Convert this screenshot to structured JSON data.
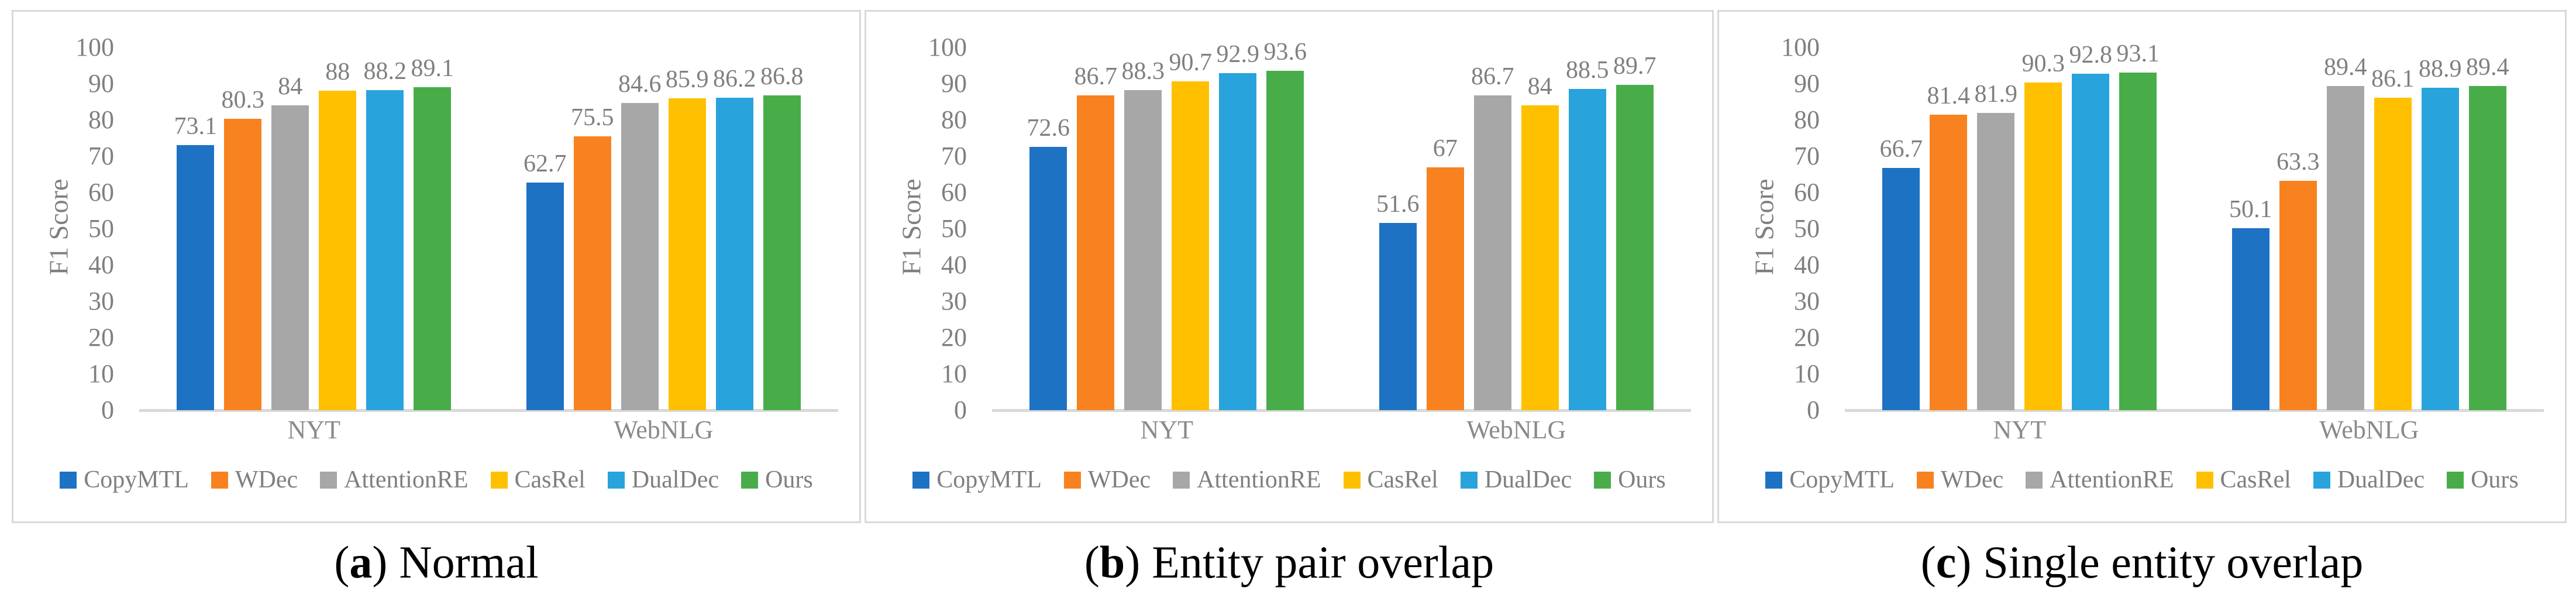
{
  "figure": {
    "ylabel": "F1 Score",
    "yticks": [
      0,
      10,
      20,
      30,
      40,
      50,
      60,
      70,
      80,
      90,
      100
    ],
    "categories": [
      "NYT",
      "WebNLG"
    ],
    "legend": [
      {
        "label": "CopyMTL",
        "color": "#1D72C4"
      },
      {
        "label": "WDec",
        "color": "#F8821F"
      },
      {
        "label": "AttentionRE",
        "color": "#A7A7A7"
      },
      {
        "label": "CasRel",
        "color": "#FFC000"
      },
      {
        "label": "DualDec",
        "color": "#29A3DC"
      },
      {
        "label": "Ours",
        "color": "#48AD49"
      }
    ],
    "text_color": "#7F7F7F",
    "axis_line_color": "#D9D9D9",
    "panel_border_color": "#D9D9D9"
  },
  "chart_data": [
    {
      "type": "bar",
      "panel": "a",
      "caption": {
        "letter": "a",
        "title": "Normal"
      },
      "ylabel": "F1 Score",
      "ylim": [
        0,
        100
      ],
      "grid": false,
      "legend_position": "bottom",
      "categories": [
        "NYT",
        "WebNLG"
      ],
      "series": [
        {
          "name": "CopyMTL",
          "values": [
            73.1,
            62.7
          ]
        },
        {
          "name": "WDec",
          "values": [
            80.3,
            75.5
          ]
        },
        {
          "name": "AttentionRE",
          "values": [
            84,
            84.6
          ]
        },
        {
          "name": "CasRel",
          "values": [
            88,
            85.9
          ]
        },
        {
          "name": "DualDec",
          "values": [
            88.2,
            86.2
          ]
        },
        {
          "name": "Ours",
          "values": [
            89.1,
            86.8
          ]
        }
      ]
    },
    {
      "type": "bar",
      "panel": "b",
      "caption": {
        "letter": "b",
        "title": "Entity pair overlap"
      },
      "ylabel": "F1 Score",
      "ylim": [
        0,
        100
      ],
      "grid": false,
      "legend_position": "bottom",
      "categories": [
        "NYT",
        "WebNLG"
      ],
      "series": [
        {
          "name": "CopyMTL",
          "values": [
            72.6,
            51.6
          ]
        },
        {
          "name": "WDec",
          "values": [
            86.7,
            67
          ]
        },
        {
          "name": "AttentionRE",
          "values": [
            88.3,
            86.7
          ]
        },
        {
          "name": "CasRel",
          "values": [
            90.7,
            84
          ]
        },
        {
          "name": "DualDec",
          "values": [
            92.9,
            88.5
          ]
        },
        {
          "name": "Ours",
          "values": [
            93.6,
            89.7
          ]
        }
      ]
    },
    {
      "type": "bar",
      "panel": "c",
      "caption": {
        "letter": "c",
        "title": "Single entity overlap"
      },
      "ylabel": "F1 Score",
      "ylim": [
        0,
        100
      ],
      "grid": false,
      "legend_position": "bottom",
      "categories": [
        "NYT",
        "WebNLG"
      ],
      "series": [
        {
          "name": "CopyMTL",
          "values": [
            66.7,
            50.1
          ]
        },
        {
          "name": "WDec",
          "values": [
            81.4,
            63.3
          ]
        },
        {
          "name": "AttentionRE",
          "values": [
            81.9,
            89.4
          ]
        },
        {
          "name": "CasRel",
          "values": [
            90.3,
            86.1
          ]
        },
        {
          "name": "DualDec",
          "values": [
            92.8,
            88.9
          ]
        },
        {
          "name": "Ours",
          "values": [
            93.1,
            89.4
          ]
        }
      ]
    }
  ]
}
